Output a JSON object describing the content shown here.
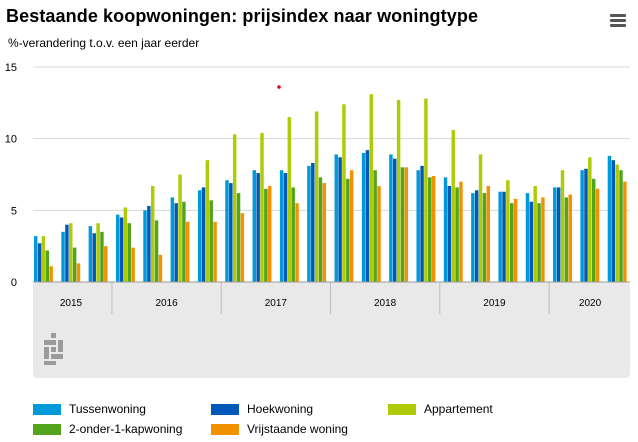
{
  "title": "Bestaande koopwoningen: prijsindex naar woningtype",
  "subtitle": "%-verandering t.o.v. een jaar eerder",
  "menu_icon": "hamburger-menu-icon",
  "logo_icon": "cbs-logo-icon",
  "colors": {
    "Tussenwoning": "#009ad9",
    "Hoekwoning": "#0058b8",
    "Appartement": "#afcb05",
    "2-onder-1-kapwoning": "#53a31d",
    "Vrijstaande woning": "#f39200",
    "panel": "#e9e9e9",
    "grid": "#d8d8d8",
    "marker": "#e30613"
  },
  "chart_data": {
    "type": "bar",
    "ylim": [
      0,
      15
    ],
    "yticks": [
      0,
      5,
      10,
      15
    ],
    "grid": true,
    "legend": "bottom",
    "years": [
      "2015",
      "2016",
      "2017",
      "2018",
      "2019",
      "2020"
    ],
    "year_quarter_counts": [
      3,
      4,
      4,
      4,
      4,
      3
    ],
    "categories": [
      "2015 Q1",
      "2015 Q2",
      "2015 Q3",
      "2016 Q1",
      "2016 Q2",
      "2016 Q3",
      "2016 Q4",
      "2017 Q1",
      "2017 Q2",
      "2017 Q3",
      "2017 Q4",
      "2018 Q1",
      "2018 Q2",
      "2018 Q3",
      "2018 Q4",
      "2019 Q1",
      "2019 Q2",
      "2019 Q3",
      "2019 Q4",
      "2020 Q1",
      "2020 Q2",
      "2020 Q3"
    ],
    "series": [
      {
        "name": "Tussenwoning",
        "values": [
          3.2,
          3.5,
          3.9,
          4.7,
          5.0,
          5.9,
          6.4,
          7.1,
          7.8,
          7.8,
          8.1,
          8.9,
          9.0,
          8.9,
          7.8,
          7.3,
          6.2,
          6.3,
          6.2,
          6.6,
          7.8,
          8.8
        ]
      },
      {
        "name": "Hoekwoning",
        "values": [
          2.7,
          4.0,
          3.4,
          4.5,
          5.3,
          5.5,
          6.6,
          6.9,
          7.6,
          7.6,
          8.3,
          8.7,
          9.2,
          8.6,
          8.1,
          6.7,
          6.4,
          6.3,
          5.6,
          6.6,
          7.9,
          8.5
        ]
      },
      {
        "name": "Appartement",
        "values": [
          3.2,
          4.1,
          4.1,
          5.2,
          6.7,
          7.5,
          8.5,
          10.3,
          10.4,
          11.5,
          11.9,
          12.4,
          13.1,
          12.7,
          12.8,
          10.6,
          8.9,
          7.1,
          6.7,
          7.8,
          8.7,
          8.2
        ]
      },
      {
        "name": "2-onder-1-kapwoning",
        "values": [
          2.2,
          2.4,
          3.5,
          4.1,
          4.3,
          5.6,
          5.7,
          6.2,
          6.5,
          6.6,
          7.3,
          7.2,
          7.8,
          8.0,
          7.3,
          6.6,
          6.2,
          5.5,
          5.5,
          5.9,
          7.2,
          7.8
        ]
      },
      {
        "name": "Vrijstaande woning",
        "values": [
          1.1,
          1.3,
          2.5,
          2.4,
          1.9,
          4.2,
          4.2,
          4.8,
          6.7,
          5.5,
          6.9,
          7.8,
          6.7,
          8.0,
          7.4,
          7.0,
          6.7,
          5.8,
          5.9,
          6.1,
          6.5,
          7.0
        ]
      }
    ]
  }
}
